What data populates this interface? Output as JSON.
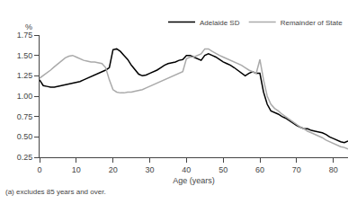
{
  "chart_data": {
    "type": "line",
    "xlabel": "Age (years)",
    "ylabel": "%",
    "annotations": [
      "(a) excludes 85 years and over."
    ],
    "xlim": [
      0,
      84
    ],
    "ylim": [
      0.25,
      1.75
    ],
    "xticks": [
      0,
      10,
      20,
      30,
      40,
      50,
      60,
      70,
      80
    ],
    "yticks": [
      0.25,
      {
        "value": 0.5,
        "label": "0.50"
      },
      0.75,
      {
        "value": 1,
        "label": "1.00"
      },
      1.25,
      {
        "value": 1.5,
        "label": "1.50"
      },
      1.75
    ],
    "grid": false,
    "legend": "upper right",
    "x": [
      0,
      1,
      2,
      3,
      4,
      5,
      6,
      7,
      8,
      9,
      10,
      11,
      12,
      13,
      14,
      15,
      16,
      17,
      18,
      19,
      20,
      21,
      22,
      23,
      24,
      25,
      26,
      27,
      28,
      29,
      30,
      31,
      32,
      33,
      34,
      35,
      36,
      37,
      38,
      39,
      40,
      41,
      42,
      43,
      44,
      45,
      46,
      47,
      48,
      49,
      50,
      51,
      52,
      53,
      54,
      55,
      56,
      57,
      58,
      59,
      60,
      61,
      62,
      63,
      64,
      65,
      66,
      67,
      68,
      69,
      70,
      71,
      72,
      73,
      74,
      75,
      76,
      77,
      78,
      79,
      80,
      81,
      82,
      83,
      84
    ],
    "series": [
      {
        "name": "Adelaide SD",
        "color": "#000000",
        "values": [
          1.2,
          1.13,
          1.12,
          1.11,
          1.11,
          1.12,
          1.13,
          1.14,
          1.15,
          1.16,
          1.17,
          1.18,
          1.2,
          1.22,
          1.24,
          1.26,
          1.28,
          1.3,
          1.32,
          1.35,
          1.57,
          1.58,
          1.55,
          1.5,
          1.45,
          1.38,
          1.32,
          1.27,
          1.25,
          1.26,
          1.28,
          1.3,
          1.32,
          1.35,
          1.38,
          1.4,
          1.41,
          1.42,
          1.44,
          1.45,
          1.5,
          1.5,
          1.48,
          1.46,
          1.44,
          1.5,
          1.52,
          1.5,
          1.48,
          1.45,
          1.42,
          1.4,
          1.38,
          1.35,
          1.32,
          1.28,
          1.25,
          1.28,
          1.3,
          1.28,
          1.28,
          1.05,
          0.9,
          0.82,
          0.8,
          0.78,
          0.75,
          0.73,
          0.7,
          0.67,
          0.64,
          0.62,
          0.6,
          0.6,
          0.58,
          0.57,
          0.56,
          0.55,
          0.53,
          0.5,
          0.48,
          0.46,
          0.44,
          0.43,
          0.45
        ]
      },
      {
        "name": "Remainder of State",
        "color": "#aaaaaa",
        "values": [
          1.22,
          1.25,
          1.28,
          1.32,
          1.36,
          1.4,
          1.44,
          1.47,
          1.49,
          1.5,
          1.48,
          1.46,
          1.44,
          1.43,
          1.42,
          1.42,
          1.41,
          1.4,
          1.35,
          1.2,
          1.08,
          1.05,
          1.04,
          1.04,
          1.05,
          1.05,
          1.06,
          1.07,
          1.08,
          1.1,
          1.12,
          1.14,
          1.16,
          1.18,
          1.2,
          1.22,
          1.24,
          1.26,
          1.28,
          1.3,
          1.46,
          1.48,
          1.48,
          1.5,
          1.52,
          1.58,
          1.58,
          1.55,
          1.52,
          1.5,
          1.48,
          1.46,
          1.44,
          1.42,
          1.4,
          1.38,
          1.35,
          1.32,
          1.3,
          1.28,
          1.45,
          1.2,
          1.0,
          0.9,
          0.85,
          0.82,
          0.78,
          0.75,
          0.72,
          0.68,
          0.65,
          0.62,
          0.6,
          0.57,
          0.55,
          0.53,
          0.51,
          0.49,
          0.46,
          0.44,
          0.42,
          0.4,
          0.38,
          0.37,
          0.35
        ]
      }
    ]
  }
}
